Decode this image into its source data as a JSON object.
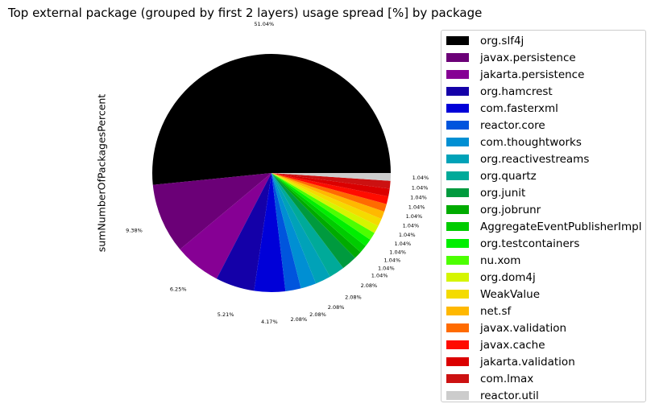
{
  "title": "Top external package (grouped by first 2 layers) usage spread [%] by package",
  "chart_data": {
    "type": "pie",
    "title": "Top external package (grouped by first 2 layers) usage spread [%] by package",
    "ylabel": "sumNumberOfPackagesPercent",
    "legend_placement": "right",
    "categories": [
      "org.slf4j",
      "javax.persistence",
      "jakarta.persistence",
      "org.hamcrest",
      "com.fasterxml",
      "reactor.core",
      "com.thoughtworks",
      "org.reactivestreams",
      "org.quartz",
      "org.junit",
      "org.jobrunr",
      "AggregateEventPublisherImpl",
      "org.testcontainers",
      "nu.xom",
      "org.dom4j",
      "WeakValue",
      "net.sf",
      "javax.validation",
      "javax.cache",
      "jakarta.validation",
      "com.lmax",
      "reactor.util"
    ],
    "values": [
      51.04,
      9.38,
      6.25,
      5.21,
      4.17,
      2.08,
      2.08,
      2.08,
      2.08,
      2.08,
      1.04,
      1.04,
      1.04,
      1.04,
      1.04,
      1.04,
      1.04,
      1.04,
      1.04,
      1.04,
      1.04,
      1.04
    ],
    "value_labels": [
      "51.04%",
      "9.38%",
      "6.25%",
      "5.21%",
      "4.17%",
      "2.08%",
      "2.08%",
      "2.08%",
      "2.08%",
      "2.08%",
      "1.04%",
      "1.04%",
      "1.04%",
      "1.04%",
      "1.04%",
      "1.04%",
      "1.04%",
      "1.04%",
      "1.04%",
      "1.04%",
      "1.04%",
      "1.04%"
    ],
    "colors": [
      "#000000",
      "#6b0077",
      "#860094",
      "#1400a8",
      "#0000d8",
      "#0055dd",
      "#008fd3",
      "#00a2b8",
      "#00aa99",
      "#009a3e",
      "#00ab00",
      "#00cc00",
      "#00ef00",
      "#4cff00",
      "#d5f500",
      "#f4db00",
      "#ffb800",
      "#ff6b00",
      "#ff0c00",
      "#db0000",
      "#cc1111",
      "#cccccc"
    ]
  }
}
